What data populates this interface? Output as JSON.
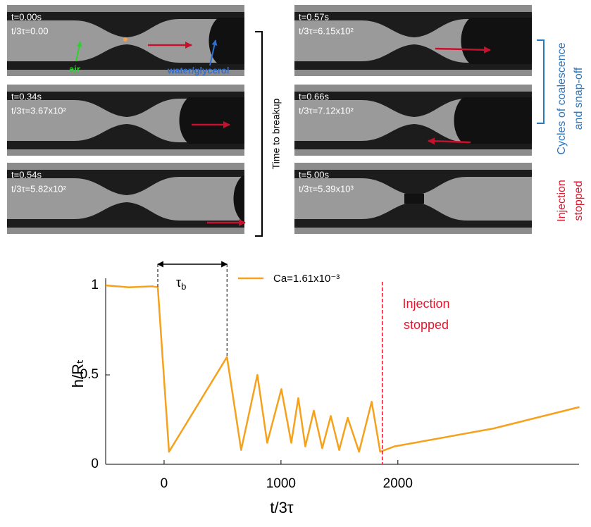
{
  "panels": [
    {
      "t": "t=0.00s",
      "tau": "t/3τ=0.00"
    },
    {
      "t": "t=0.34s",
      "tau": "t/3τ=3.67x10²"
    },
    {
      "t": "t=0.54s",
      "tau": "t/3τ=5.82x10²"
    },
    {
      "t": "t=0.57s",
      "tau": "t/3τ=6.15x10²"
    },
    {
      "t": "t=0.66s",
      "tau": "t/3τ=7.12x10²"
    },
    {
      "t": "t=5.00s",
      "tau": "t/3τ=5.39x10³"
    }
  ],
  "labels": {
    "air": "air",
    "water": "water/glycerol",
    "breakup": "Time to breakup",
    "cycles": [
      "Cycles of  coalescence",
      "and snap-off"
    ],
    "stopped": [
      "Injection",
      "stopped"
    ]
  },
  "chart_data": {
    "type": "line",
    "x_label": "t/3τ",
    "y_label": "h/Rₜ",
    "xlim": [
      -500,
      3550
    ],
    "ylim": [
      0,
      1.04
    ],
    "xticks": [
      0,
      1000,
      2000
    ],
    "yticks": [
      0,
      0.5,
      1
    ],
    "series": [
      {
        "name": "Ca=1.61x10⁻³",
        "color": "#f5a11c",
        "x": [
          -500,
          -300,
          -100,
          -54,
          42,
          538,
          659,
          798,
          882,
          1003,
          1088,
          1148,
          1208,
          1281,
          1353,
          1426,
          1498,
          1571,
          1668,
          1776,
          1849,
          1970,
          2816,
          3553
        ],
        "values": [
          1.0,
          0.99,
          0.995,
          0.99,
          0.07,
          0.6,
          0.08,
          0.5,
          0.12,
          0.42,
          0.12,
          0.37,
          0.1,
          0.3,
          0.09,
          0.27,
          0.08,
          0.26,
          0.07,
          0.35,
          0.07,
          0.1,
          0.2,
          0.32
        ]
      }
    ],
    "tau_b": {
      "symbol": "τ",
      "subscript": "b",
      "span": [
        -54,
        538
      ],
      "ends": [
        0.99,
        0.6
      ]
    },
    "stop": {
      "x": 1867,
      "color": "#e0182d",
      "label": [
        "Injection",
        "stopped"
      ]
    }
  }
}
